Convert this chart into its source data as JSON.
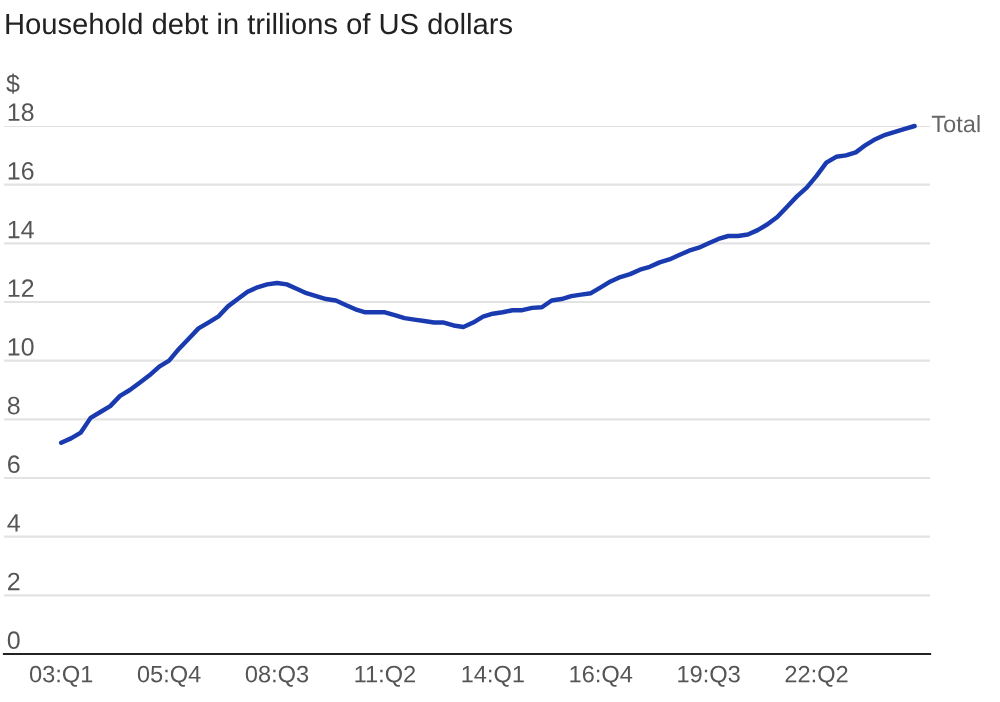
{
  "chart_data": {
    "type": "line",
    "title": "Household debt in trillions of US dollars",
    "ylabel": "$",
    "categories": [
      "03:Q1",
      null,
      null,
      null,
      null,
      null,
      null,
      null,
      null,
      null,
      null,
      "05:Q4",
      null,
      null,
      null,
      null,
      null,
      null,
      null,
      null,
      null,
      null,
      "08:Q3",
      null,
      null,
      null,
      null,
      null,
      null,
      null,
      null,
      null,
      null,
      "11:Q2",
      null,
      null,
      null,
      null,
      null,
      null,
      null,
      null,
      null,
      null,
      "14:Q1",
      null,
      null,
      null,
      null,
      null,
      null,
      null,
      null,
      null,
      null,
      "16:Q4",
      null,
      null,
      null,
      null,
      null,
      null,
      null,
      null,
      null,
      null,
      "19:Q3",
      null,
      null,
      null,
      null,
      null,
      null,
      null,
      null,
      null,
      null,
      "22:Q2",
      null,
      null,
      null,
      null,
      null,
      null,
      null,
      null,
      null,
      null
    ],
    "series": [
      {
        "name": "Total",
        "color": "#1a3bb0",
        "values": [
          7.2,
          7.35,
          7.55,
          8.05,
          8.25,
          8.45,
          8.8,
          9.0,
          9.25,
          9.5,
          9.8,
          10.0,
          10.4,
          10.75,
          11.1,
          11.3,
          11.5,
          11.85,
          12.1,
          12.35,
          12.5,
          12.6,
          12.65,
          12.6,
          12.45,
          12.3,
          12.2,
          12.1,
          12.05,
          11.9,
          11.75,
          11.65,
          11.65,
          11.65,
          11.55,
          11.45,
          11.4,
          11.35,
          11.3,
          11.3,
          11.2,
          11.15,
          11.3,
          11.5,
          11.6,
          11.65,
          11.72,
          11.72,
          11.8,
          11.82,
          12.05,
          12.1,
          12.2,
          12.25,
          12.3,
          12.5,
          12.7,
          12.85,
          12.95,
          13.1,
          13.2,
          13.35,
          13.45,
          13.6,
          13.75,
          13.85,
          14.0,
          14.15,
          14.25,
          14.25,
          14.3,
          14.45,
          14.65,
          14.9,
          15.25,
          15.6,
          15.9,
          16.3,
          16.75,
          16.95,
          17.0,
          17.1,
          17.35,
          17.55,
          17.7,
          17.8,
          17.9,
          18.0
        ]
      }
    ],
    "ylim": [
      0,
      18
    ],
    "yticks": [
      0,
      2,
      4,
      6,
      8,
      10,
      12,
      14,
      16,
      18
    ],
    "grid": "y"
  }
}
